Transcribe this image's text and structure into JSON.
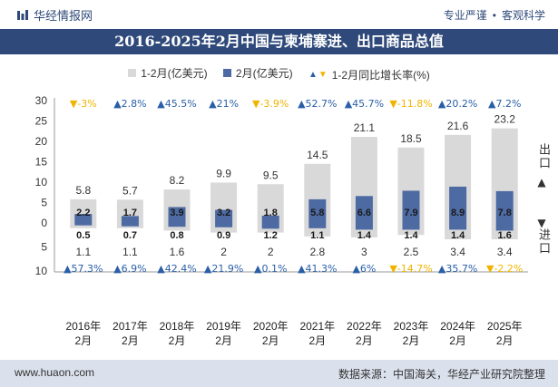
{
  "header": {
    "brand": "华经情报网",
    "tagline_left": "专业严谨",
    "tagline_right": "客观科学"
  },
  "title": "2016-2025年2月中国与柬埔寨进、出口商品总值",
  "legend": {
    "total": "1-2月(亿美元)",
    "feb": "2月(亿美元)",
    "growth": "1-2月同比增长率(%)"
  },
  "side_labels": {
    "export": "出口",
    "import": "进口"
  },
  "footer": {
    "site": "www.huaon.com",
    "source": "数据来源：中国海关，华经产业研究院整理"
  },
  "colors": {
    "total": "#d9d9d9",
    "feb": "#4d6aa3",
    "up": "#2a5fa8",
    "down": "#f0b400",
    "brand": "#2f4a7a"
  },
  "chart_data": {
    "type": "bar",
    "categories": [
      "2016年\n2月",
      "2017年\n2月",
      "2018年\n2月",
      "2019年\n2月",
      "2020年\n2月",
      "2021年\n2月",
      "2022年\n2月",
      "2023年\n2月",
      "2024年\n2月",
      "2025年\n2月"
    ],
    "export": {
      "total_1_2": [
        5.8,
        5.7,
        8.2,
        9.9,
        9.5,
        14.5,
        21.1,
        18.5,
        21.6,
        23.2
      ],
      "feb": [
        2.2,
        1.7,
        3.9,
        3.2,
        1.8,
        5.8,
        6.6,
        7.9,
        8.9,
        7.8
      ],
      "growth_label": [
        "-3%",
        "2.8%",
        "45.5%",
        "21%",
        "-3.9%",
        "52.7%",
        "45.7%",
        "-11.8%",
        "20.2%",
        "7.2%"
      ],
      "growth_dir": [
        "down",
        "up",
        "up",
        "up",
        "down",
        "up",
        "up",
        "down",
        "up",
        "up"
      ]
    },
    "import": {
      "total_1_2": [
        "1.1",
        "1.1",
        "1.6",
        "2",
        "2",
        "2.8",
        "3",
        "2.5",
        "3.4",
        "3.4"
      ],
      "feb": [
        "0.5",
        "0.7",
        "0.8",
        "0.9",
        "1.2",
        "1.1",
        "1.4",
        "1.4",
        "1.4",
        "1.6"
      ],
      "growth_label": [
        "57.3%",
        "6.9%",
        "42.4%",
        "21.9%",
        "0.1%",
        "41.3%",
        "6%",
        "-14.7%",
        "35.7%",
        "-2.2%"
      ],
      "growth_dir": [
        "up",
        "up",
        "up",
        "up",
        "up",
        "up",
        "up",
        "down",
        "up",
        "down"
      ]
    },
    "y_ticks_upper": [
      "30",
      "25",
      "20",
      "15",
      "10",
      "5",
      "0"
    ],
    "y_ticks_lower": [
      "5",
      "10"
    ],
    "ylim_export": [
      0,
      30
    ],
    "ylim_import": [
      0,
      10
    ]
  }
}
